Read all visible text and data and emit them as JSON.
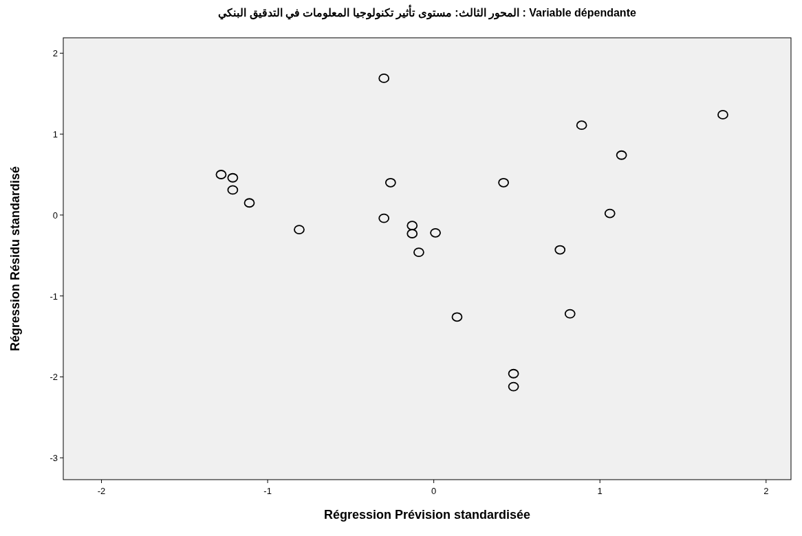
{
  "chart_data": {
    "type": "scatter",
    "title": "Variable dépendante : المحور الثالث: مستوى تأثير تكنولوجيا المعلومات في التدقيق البنكي",
    "xlabel": "Régression Prévision standardisée",
    "ylabel": "Régression Résidu standardisé",
    "x": [
      -1.28,
      -1.21,
      -1.21,
      -1.11,
      -0.81,
      -0.3,
      -0.26,
      -0.3,
      -0.13,
      -0.13,
      0.01,
      -0.09,
      0.14,
      0.48,
      0.48,
      0.76,
      1.06,
      0.82,
      0.89,
      1.13,
      0.42,
      1.74
    ],
    "values": [
      0.5,
      0.46,
      0.31,
      0.15,
      -0.18,
      1.69,
      0.4,
      -0.04,
      -0.13,
      -0.23,
      -0.22,
      -0.46,
      -1.26,
      -1.96,
      -2.12,
      -0.43,
      0.02,
      -1.22,
      1.11,
      0.74,
      0.4,
      1.24
    ],
    "color": "#000000",
    "marker": "circle",
    "xlim": [
      -2.23,
      2.15
    ],
    "ylim": [
      -3.27,
      2.19
    ],
    "xticks": [
      -2,
      -1,
      0,
      1,
      2
    ],
    "yticks": [
      -3,
      -2,
      -1,
      0,
      1,
      2
    ]
  }
}
